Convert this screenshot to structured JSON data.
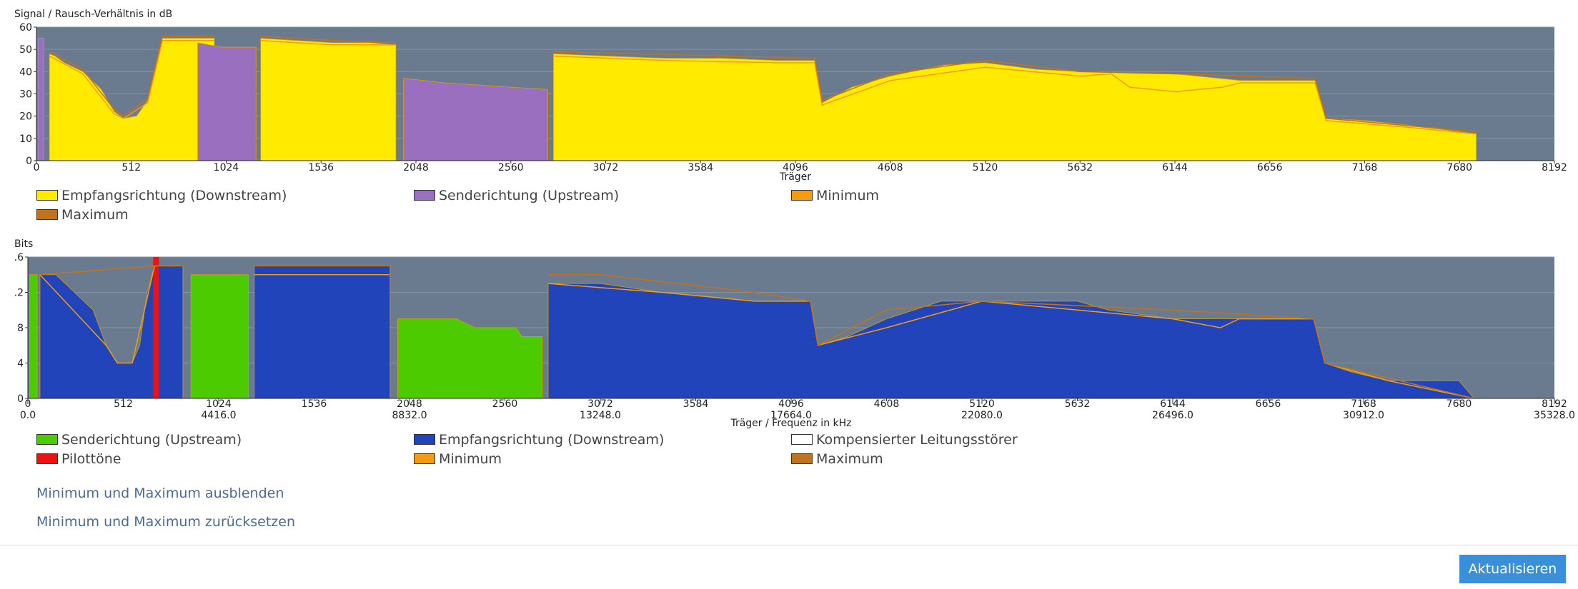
{
  "chart_data": [
    {
      "type": "area",
      "title": "Signal / Rausch-Verhältnis in dB",
      "xlabel": "Träger",
      "xlim": [
        0,
        8192
      ],
      "xticks": [
        0,
        512,
        1024,
        1536,
        2048,
        2560,
        3072,
        3584,
        4096,
        4608,
        5120,
        5632,
        6144,
        6656,
        7168,
        7680,
        8192
      ],
      "ylim": [
        0,
        60
      ],
      "yticks": [
        0,
        10,
        20,
        30,
        40,
        50,
        60
      ],
      "grid": true,
      "series": [
        {
          "name": "Empfangsrichtung (Downstream)",
          "color": "#ffea00",
          "style": "area",
          "x": [
            70,
            100,
            150,
            250,
            350,
            420,
            470,
            540,
            600,
            640,
            680,
            800,
            960,
            1100,
            1210,
            1400,
            1600,
            1800,
            1940,
            2300,
            2790,
            3072,
            3400,
            3700,
            4000,
            4200,
            4240,
            4400,
            4608,
            4900,
            5120,
            5400,
            5632,
            6144,
            6500,
            6900,
            6960,
            7168,
            7400,
            7680,
            7770
          ],
          "values": [
            48,
            47,
            44,
            40,
            32,
            22,
            19,
            20,
            27,
            40,
            55,
            55,
            55,
            null,
            55,
            54,
            53,
            53,
            52,
            null,
            48,
            47,
            46,
            46,
            45,
            45,
            26,
            33,
            38,
            43,
            44,
            41,
            40,
            39,
            36,
            36,
            19,
            18,
            16,
            13,
            12
          ]
        },
        {
          "name": "Senderichtung (Upstream)",
          "color": "#9a6fc0",
          "style": "area",
          "x": [
            10,
            40,
            400,
            870,
            1000,
            1100,
            1185,
            1500,
            1980,
            2200,
            2560,
            2760
          ],
          "values": [
            55,
            55,
            null,
            53,
            51,
            51,
            51,
            null,
            37,
            35,
            33,
            32
          ]
        },
        {
          "name": "Minimum",
          "color": "#f39c12",
          "style": "line",
          "x": [
            70,
            250,
            420,
            470,
            600,
            680,
            960,
            1100,
            1210,
            1600,
            1940,
            2300,
            2790,
            3400,
            4000,
            4200,
            4240,
            4608,
            5120,
            5632,
            5800,
            5900,
            6144,
            6400,
            6500,
            6900,
            6960,
            7400,
            7770
          ],
          "values": [
            47,
            39,
            21,
            19,
            26,
            54,
            54,
            null,
            54,
            52,
            52,
            null,
            47,
            45,
            44,
            44,
            25,
            36,
            42,
            38,
            39,
            33,
            31,
            33,
            35,
            35,
            18,
            15,
            12
          ]
        },
        {
          "name": "Maximum",
          "color": "#c0731a",
          "style": "line",
          "x": [
            70,
            250,
            420,
            470,
            600,
            680,
            960,
            1100,
            1210,
            1600,
            1940,
            2300,
            2790,
            4200,
            4240,
            4608,
            5120,
            5632,
            6144,
            6900,
            6960,
            7770
          ],
          "values": [
            49,
            41,
            23,
            20,
            28,
            56,
            56,
            null,
            56,
            54,
            53,
            null,
            49,
            46,
            27,
            39,
            45,
            40,
            39,
            37,
            19,
            13
          ]
        }
      ]
    },
    {
      "type": "area",
      "title": "Bits",
      "xlabel": "Träger / Frequenz in kHz",
      "xlim": [
        0,
        8192
      ],
      "xticks": [
        0,
        512,
        1024,
        1536,
        2048,
        2560,
        3072,
        3584,
        4096,
        4608,
        5120,
        5632,
        6144,
        6656,
        7168,
        7680,
        8192
      ],
      "x2lim": [
        0,
        35328
      ],
      "x2ticks": [
        {
          "value": 0,
          "label": "0.0"
        },
        {
          "value": 4416,
          "label": "4416.0"
        },
        {
          "value": 8832,
          "label": "8832.0"
        },
        {
          "value": 13248,
          "label": "13248.0"
        },
        {
          "value": 17664,
          "label": "17664.0"
        },
        {
          "value": 22080,
          "label": "22080.0"
        },
        {
          "value": 26496,
          "label": "26496.0"
        },
        {
          "value": 30912,
          "label": "30912.0"
        },
        {
          "value": 35328,
          "label": "35328.0"
        }
      ],
      "ylim": [
        0,
        16
      ],
      "yticks": [
        0,
        4,
        8,
        {
          "value": 12,
          "label": ".2"
        },
        {
          "value": 16,
          "label": ".6"
        }
      ],
      "grid": true,
      "series": [
        {
          "name": "Senderichtung (Upstream)",
          "color": "#4ccc00",
          "style": "area",
          "x": [
            10,
            50,
            400,
            875,
            1183,
            1500,
            1985,
            2300,
            2400,
            2620,
            2650,
            2760
          ],
          "values": [
            14,
            14,
            null,
            14,
            14,
            null,
            9,
            9,
            8,
            8,
            7,
            7
          ]
        },
        {
          "name": "Empfangsrichtung (Downstream)",
          "color": "#2244bb",
          "style": "area",
          "x": [
            65,
            150,
            250,
            350,
            420,
            480,
            560,
            600,
            640,
            680,
            832,
            1000,
            1215,
            1900,
            1944,
            2300,
            2792,
            3072,
            3400,
            3900,
            4200,
            4240,
            4400,
            4608,
            4900,
            5120,
            5632,
            5800,
            6144,
            6656,
            6900,
            6960,
            7100,
            7300,
            7680,
            7760
          ],
          "values": [
            14,
            14,
            12,
            10,
            6,
            4,
            4,
            6,
            12,
            15,
            15,
            null,
            15,
            15,
            15,
            null,
            13,
            13,
            12,
            11,
            11,
            6,
            7,
            9,
            11,
            11,
            11,
            10,
            9,
            9,
            9,
            4,
            3,
            2,
            2,
            0
          ]
        },
        {
          "name": "Kompensierter Leitungsstörer",
          "color": "#ffffff",
          "style": "area",
          "x": [],
          "values": []
        },
        {
          "name": "Pilottöne",
          "color": "#ee1111",
          "style": "bar",
          "x": [
            688
          ],
          "values": [
            16
          ]
        },
        {
          "name": "Minimum",
          "color": "#f39c12",
          "style": "line",
          "x": [
            65,
            420,
            480,
            560,
            680,
            832,
            900,
            1215,
            1940,
            2000,
            2792,
            3400,
            3900,
            4200,
            4240,
            4608,
            5120,
            5632,
            6144,
            6400,
            6500,
            6656,
            6900,
            6960,
            7300,
            7760
          ],
          "values": [
            14,
            6,
            4,
            4,
            15,
            15,
            null,
            14,
            14,
            null,
            13,
            12,
            11,
            11,
            6,
            8,
            11,
            10,
            9,
            8,
            9,
            9,
            9,
            4,
            2,
            0
          ]
        },
        {
          "name": "Maximum",
          "color": "#c0731a",
          "style": "line",
          "x": [
            65,
            680,
            832,
            900,
            1215,
            1940,
            2000,
            2792,
            3072,
            3900,
            4200,
            4240,
            4608,
            5120,
            6144,
            6900,
            6960,
            7760
          ],
          "values": [
            14,
            15,
            15,
            null,
            15,
            15,
            null,
            14,
            14,
            12,
            11,
            6,
            10,
            11,
            10,
            9,
            4,
            0
          ]
        }
      ]
    }
  ],
  "links": [
    "Minimum und Maximum ausblenden",
    "Minimum und Maximum zurücksetzen"
  ],
  "button": "Aktualisieren"
}
